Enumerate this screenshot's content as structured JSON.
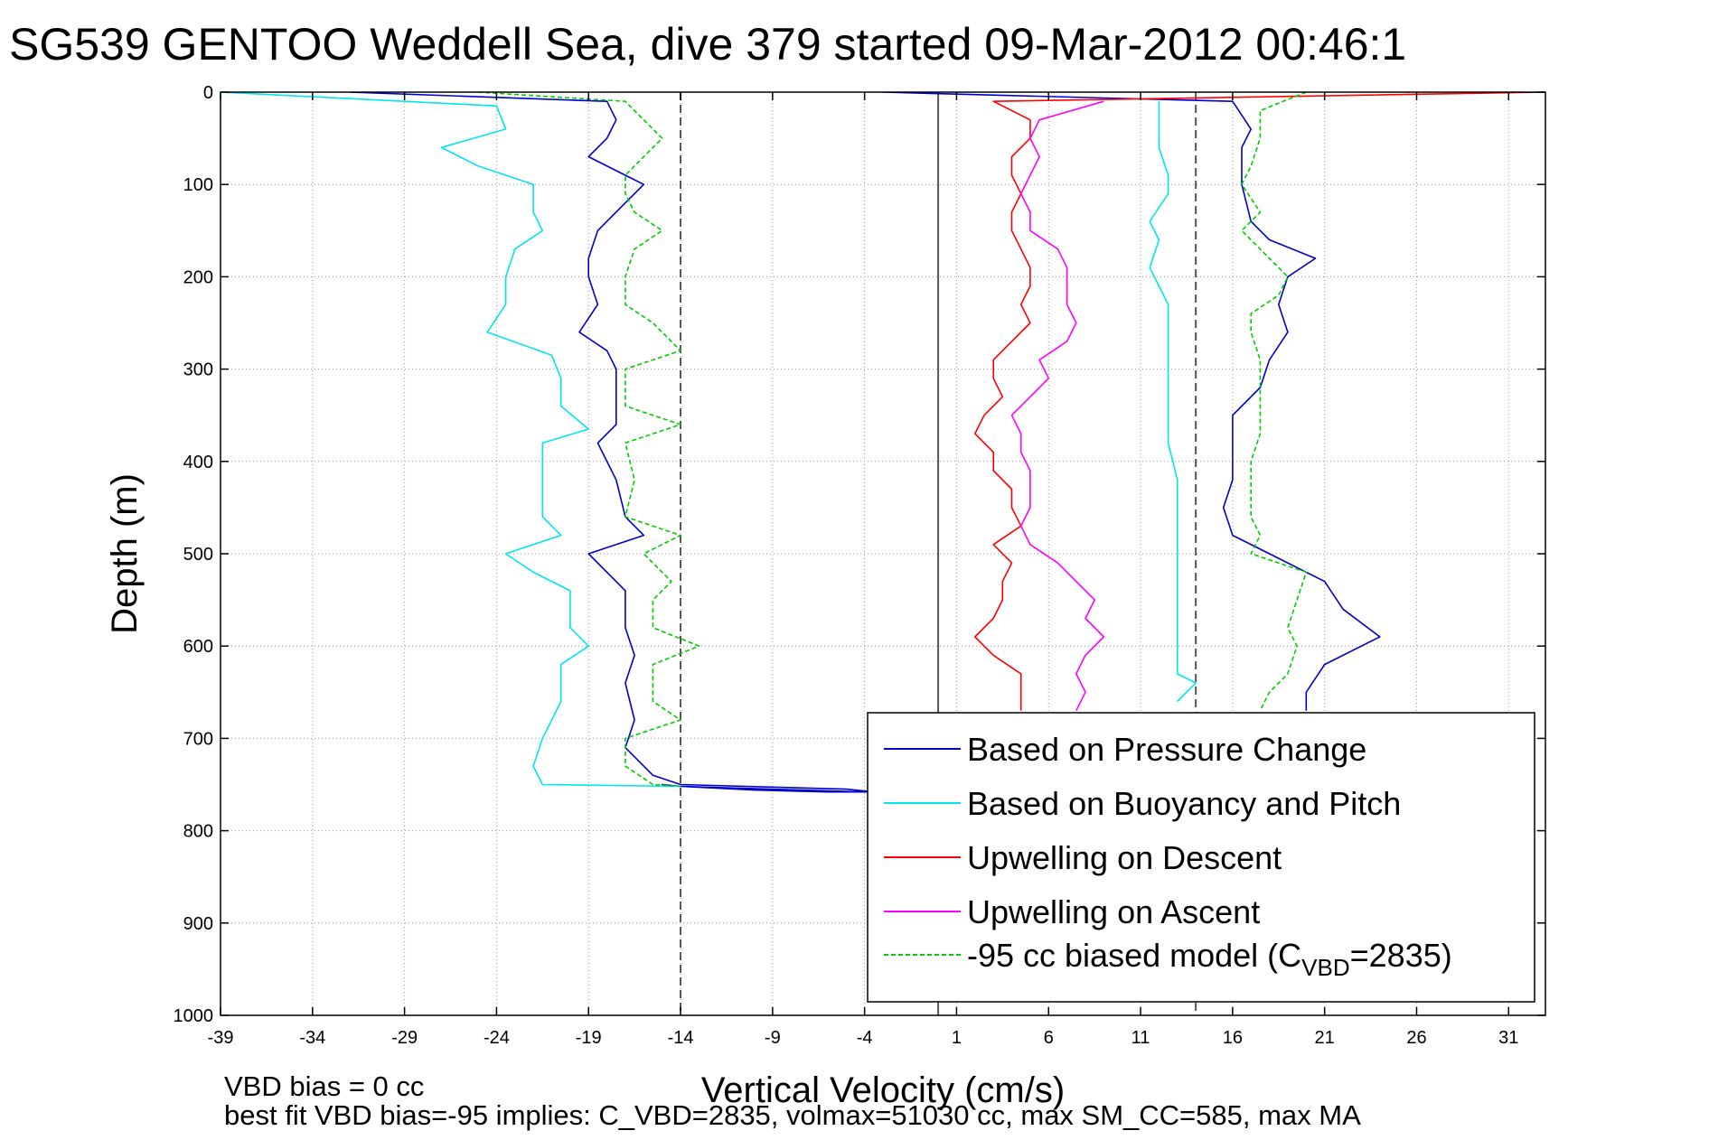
{
  "chart_data": {
    "type": "line",
    "title": "SG539 GENTOO Weddell Sea, dive 379 started 09-Mar-2012 00:46:1",
    "xlabel": "Vertical Velocity (cm/s)",
    "ylabel": "Depth (m)",
    "xlim": [
      -39,
      33
    ],
    "ylim": [
      0,
      1000
    ],
    "y_reversed": true,
    "xticks": [
      -39,
      -34,
      -29,
      -24,
      -19,
      -14,
      -9,
      -4,
      1,
      6,
      11,
      16,
      21,
      26,
      31
    ],
    "yticks": [
      0,
      100,
      200,
      300,
      400,
      500,
      600,
      700,
      800,
      900,
      1000
    ],
    "grid": true,
    "grid_style": "dotted",
    "reference_lines": [
      {
        "x": -14,
        "style": "dashed",
        "color": "#555555"
      },
      {
        "x": 14,
        "style": "dashed",
        "color": "#555555"
      },
      {
        "x": 0,
        "style": "solid",
        "color": "#555555"
      }
    ],
    "legend_position": "bottom-right",
    "series": [
      {
        "name": "Based on Pressure Change",
        "color": "#0000cc",
        "style": "solid",
        "points": [
          [
            -32,
            0
          ],
          [
            -18,
            10
          ],
          [
            -17.5,
            30
          ],
          [
            -18,
            50
          ],
          [
            -19,
            70
          ],
          [
            -17,
            90
          ],
          [
            -16,
            100
          ],
          [
            -17,
            120
          ],
          [
            -18.5,
            150
          ],
          [
            -19,
            180
          ],
          [
            -19,
            200
          ],
          [
            -18.5,
            230
          ],
          [
            -19.5,
            260
          ],
          [
            -18,
            280
          ],
          [
            -17.5,
            300
          ],
          [
            -17.5,
            330
          ],
          [
            -17.5,
            360
          ],
          [
            -18.5,
            380
          ],
          [
            -17.5,
            420
          ],
          [
            -17,
            460
          ],
          [
            -16,
            480
          ],
          [
            -19,
            500
          ],
          [
            -17,
            540
          ],
          [
            -17,
            580
          ],
          [
            -16.5,
            610
          ],
          [
            -17,
            640
          ],
          [
            -16.5,
            680
          ],
          [
            -17,
            710
          ],
          [
            -15.5,
            740
          ],
          [
            -14,
            750
          ],
          [
            -5,
            755
          ],
          [
            -3.5,
            758
          ],
          [
            -6,
            758
          ],
          [
            -10,
            756
          ],
          [
            -14,
            752
          ],
          [
            -15,
            750
          ],
          [
            -14,
            752
          ],
          [
            -4,
            758
          ]
        ],
        "ascent_points": [
          [
            -3,
            0
          ],
          [
            16,
            10
          ],
          [
            17,
            40
          ],
          [
            16.5,
            60
          ],
          [
            16.5,
            100
          ],
          [
            17,
            140
          ],
          [
            18,
            160
          ],
          [
            20.5,
            180
          ],
          [
            19,
            200
          ],
          [
            18.5,
            230
          ],
          [
            19,
            260
          ],
          [
            18,
            290
          ],
          [
            17.5,
            320
          ],
          [
            16,
            350
          ],
          [
            16,
            380
          ],
          [
            16,
            420
          ],
          [
            15.5,
            450
          ],
          [
            16,
            480
          ],
          [
            18,
            500
          ],
          [
            21,
            530
          ],
          [
            22,
            560
          ],
          [
            24,
            590
          ],
          [
            21,
            620
          ],
          [
            20,
            650
          ],
          [
            20,
            670
          ]
        ],
        "ascent_series_note": ""
      },
      {
        "name": "Based on Buoyancy and Pitch",
        "color": "#00e5ee",
        "style": "solid",
        "points": [
          [
            -39,
            0
          ],
          [
            -24,
            15
          ],
          [
            -23.5,
            40
          ],
          [
            -27,
            60
          ],
          [
            -25,
            80
          ],
          [
            -22,
            100
          ],
          [
            -22,
            130
          ],
          [
            -21.5,
            150
          ],
          [
            -23,
            170
          ],
          [
            -23.5,
            200
          ],
          [
            -23.5,
            230
          ],
          [
            -24.5,
            260
          ],
          [
            -21,
            285
          ],
          [
            -20.5,
            310
          ],
          [
            -20.5,
            340
          ],
          [
            -19,
            365
          ],
          [
            -21.5,
            380
          ],
          [
            -21.5,
            420
          ],
          [
            -21.5,
            460
          ],
          [
            -20.5,
            480
          ],
          [
            -23.5,
            500
          ],
          [
            -22,
            520
          ],
          [
            -20,
            540
          ],
          [
            -20,
            580
          ],
          [
            -19,
            600
          ],
          [
            -20.5,
            620
          ],
          [
            -20.5,
            660
          ],
          [
            -21,
            680
          ],
          [
            -21.5,
            700
          ],
          [
            -22,
            730
          ],
          [
            -21.5,
            750
          ],
          [
            -14,
            752
          ]
        ],
        "ascent_points": [
          [
            12,
            10
          ],
          [
            12,
            40
          ],
          [
            12,
            60
          ],
          [
            12.5,
            90
          ],
          [
            12.5,
            110
          ],
          [
            11.5,
            140
          ],
          [
            12,
            160
          ],
          [
            11.5,
            190
          ],
          [
            12,
            210
          ],
          [
            12.5,
            230
          ],
          [
            12.5,
            260
          ],
          [
            12.5,
            300
          ],
          [
            12.5,
            340
          ],
          [
            12.5,
            380
          ],
          [
            13,
            420
          ],
          [
            13,
            460
          ],
          [
            13,
            480
          ],
          [
            13,
            500
          ],
          [
            13,
            530
          ],
          [
            13,
            560
          ],
          [
            13,
            600
          ],
          [
            13,
            630
          ],
          [
            14,
            640
          ],
          [
            13,
            660
          ]
        ]
      },
      {
        "name": "Upwelling on Descent",
        "color": "#ff0000",
        "style": "solid",
        "points": [
          [
            33,
            0
          ],
          [
            3,
            10
          ],
          [
            5,
            30
          ],
          [
            5,
            50
          ],
          [
            4,
            70
          ],
          [
            4,
            90
          ],
          [
            4.5,
            110
          ],
          [
            4,
            130
          ],
          [
            4,
            150
          ],
          [
            4.5,
            170
          ],
          [
            5,
            190
          ],
          [
            5,
            210
          ],
          [
            4.5,
            230
          ],
          [
            5,
            250
          ],
          [
            4,
            270
          ],
          [
            3,
            290
          ],
          [
            3,
            310
          ],
          [
            3.5,
            330
          ],
          [
            2.5,
            350
          ],
          [
            2,
            370
          ],
          [
            3,
            390
          ],
          [
            3,
            410
          ],
          [
            4,
            430
          ],
          [
            4,
            450
          ],
          [
            4.5,
            470
          ],
          [
            3,
            490
          ],
          [
            4,
            510
          ],
          [
            3.5,
            530
          ],
          [
            3.5,
            550
          ],
          [
            3,
            570
          ],
          [
            2,
            590
          ],
          [
            3,
            610
          ],
          [
            4.5,
            630
          ],
          [
            4.5,
            650
          ],
          [
            4.5,
            670
          ]
        ]
      },
      {
        "name": "Upwelling on Ascent",
        "color": "#ff00ff",
        "style": "solid",
        "points": [
          [
            9,
            10
          ],
          [
            5.5,
            30
          ],
          [
            5,
            50
          ],
          [
            5.5,
            70
          ],
          [
            5,
            90
          ],
          [
            4.5,
            110
          ],
          [
            5,
            130
          ],
          [
            5,
            150
          ],
          [
            6.5,
            170
          ],
          [
            7,
            190
          ],
          [
            7,
            210
          ],
          [
            7,
            230
          ],
          [
            7.5,
            250
          ],
          [
            7,
            270
          ],
          [
            5.5,
            290
          ],
          [
            6,
            310
          ],
          [
            5,
            330
          ],
          [
            4,
            350
          ],
          [
            4.5,
            370
          ],
          [
            4.5,
            390
          ],
          [
            5,
            410
          ],
          [
            5,
            430
          ],
          [
            5,
            450
          ],
          [
            4.5,
            470
          ],
          [
            5,
            490
          ],
          [
            6.5,
            510
          ],
          [
            7.5,
            530
          ],
          [
            8.5,
            550
          ],
          [
            8,
            570
          ],
          [
            9,
            590
          ],
          [
            8,
            610
          ],
          [
            7.5,
            630
          ],
          [
            8,
            650
          ],
          [
            7.5,
            670
          ]
        ]
      },
      {
        "name": "-95 cc biased model (C",
        "name_subscript": "VBD",
        "name_suffix": "=2835)",
        "color": "#00cc00",
        "style": "dashed",
        "points": [
          [
            -25,
            0
          ],
          [
            -17,
            10
          ],
          [
            -16,
            30
          ],
          [
            -15,
            50
          ],
          [
            -16,
            70
          ],
          [
            -17,
            90
          ],
          [
            -17,
            110
          ],
          [
            -16.5,
            130
          ],
          [
            -15,
            150
          ],
          [
            -16.5,
            170
          ],
          [
            -17,
            200
          ],
          [
            -17,
            230
          ],
          [
            -15.5,
            250
          ],
          [
            -14,
            280
          ],
          [
            -17,
            300
          ],
          [
            -17,
            340
          ],
          [
            -14,
            360
          ],
          [
            -17,
            380
          ],
          [
            -16.5,
            420
          ],
          [
            -17,
            460
          ],
          [
            -14,
            480
          ],
          [
            -16,
            500
          ],
          [
            -14.5,
            530
          ],
          [
            -15.5,
            550
          ],
          [
            -15.5,
            580
          ],
          [
            -13,
            600
          ],
          [
            -15.5,
            620
          ],
          [
            -15.5,
            660
          ],
          [
            -14,
            680
          ],
          [
            -17,
            700
          ],
          [
            -17,
            730
          ],
          [
            -15.5,
            750
          ],
          [
            -14,
            752
          ]
        ],
        "ascent_points": [
          [
            20,
            0
          ],
          [
            17.5,
            20
          ],
          [
            17.5,
            50
          ],
          [
            17,
            80
          ],
          [
            16.5,
            100
          ],
          [
            17.5,
            130
          ],
          [
            16.5,
            150
          ],
          [
            18,
            180
          ],
          [
            19,
            200
          ],
          [
            18.5,
            220
          ],
          [
            17,
            240
          ],
          [
            17,
            260
          ],
          [
            17.5,
            290
          ],
          [
            17.5,
            330
          ],
          [
            17.5,
            370
          ],
          [
            17,
            400
          ],
          [
            17,
            430
          ],
          [
            17,
            460
          ],
          [
            17.5,
            480
          ],
          [
            17,
            500
          ],
          [
            20,
            520
          ],
          [
            19.5,
            550
          ],
          [
            19,
            580
          ],
          [
            19.5,
            600
          ],
          [
            19,
            630
          ],
          [
            18,
            650
          ],
          [
            17.5,
            670
          ]
        ]
      }
    ],
    "footer_lines": [
      "VBD bias = 0 cc",
      "best fit VBD bias=-95 implies: C_VBD=2835, volmax=51030 cc, max SM_CC=585, max MA"
    ]
  }
}
